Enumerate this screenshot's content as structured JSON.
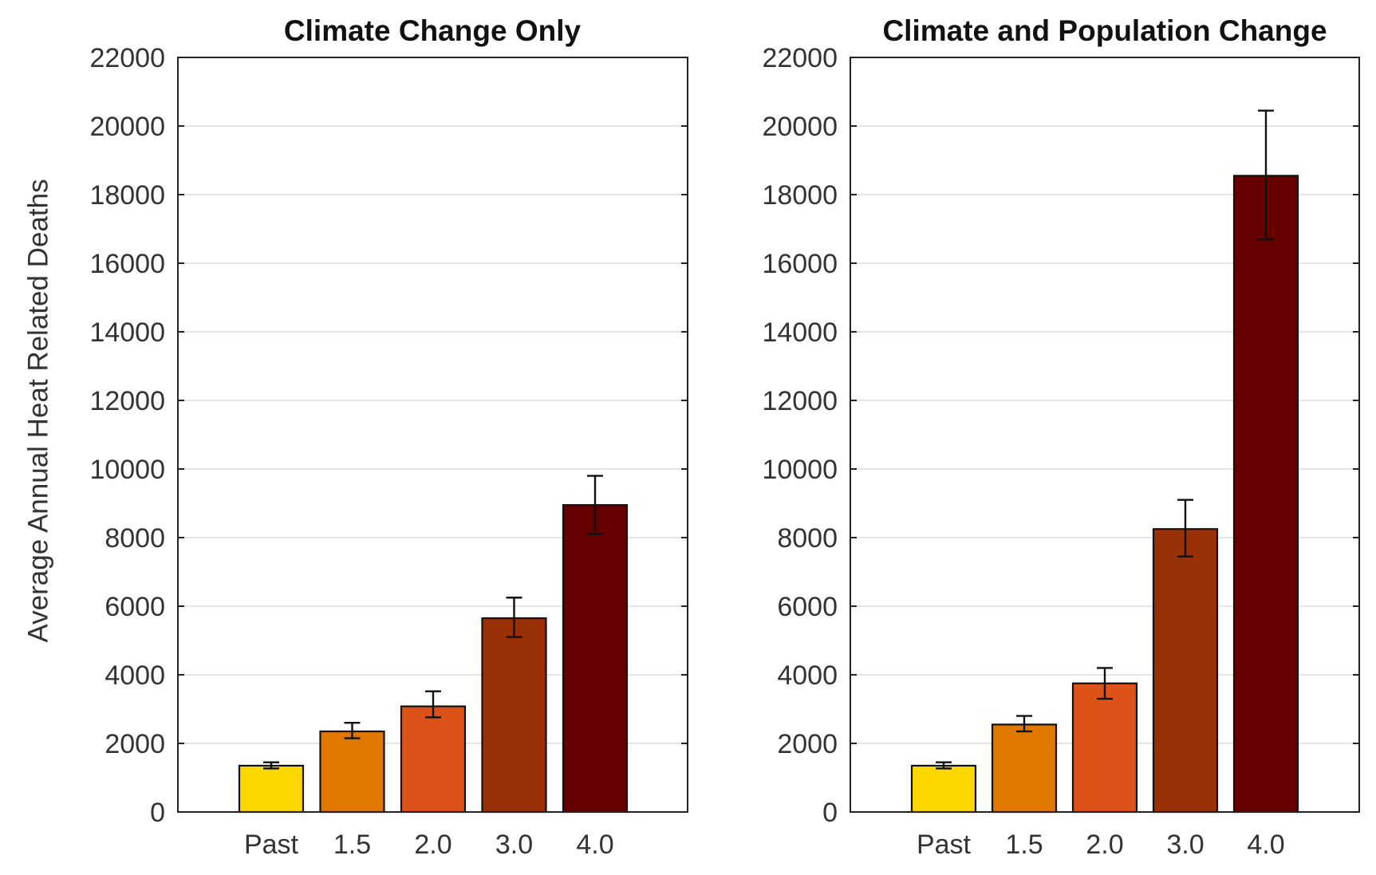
{
  "ylabel": "Average Annual Heat Related Deaths",
  "colors": [
    "#FFD700",
    "#E07800",
    "#DD5218",
    "#9A3006",
    "#660000"
  ],
  "chart_data": [
    {
      "type": "bar",
      "title": "Climate Change Only",
      "categories": [
        "Past",
        "1.5",
        "2.0",
        "3.0",
        "4.0"
      ],
      "values": [
        1350,
        2350,
        3080,
        5650,
        8950
      ],
      "error_low": [
        1270,
        2150,
        2760,
        5100,
        8100
      ],
      "error_high": [
        1450,
        2600,
        3520,
        6250,
        9800
      ],
      "ylim": [
        0,
        22000
      ],
      "yticks": [
        0,
        2000,
        4000,
        6000,
        8000,
        10000,
        12000,
        14000,
        16000,
        18000,
        20000,
        22000
      ],
      "xlabel": "",
      "ylabel": "Average Annual Heat Related Deaths",
      "grid": "horizontal"
    },
    {
      "type": "bar",
      "title": "Climate and Population Change",
      "categories": [
        "Past",
        "1.5",
        "2.0",
        "3.0",
        "4.0"
      ],
      "values": [
        1350,
        2550,
        3750,
        8250,
        18550
      ],
      "error_low": [
        1270,
        2350,
        3300,
        7450,
        16700
      ],
      "error_high": [
        1450,
        2800,
        4200,
        9100,
        20450
      ],
      "ylim": [
        0,
        22000
      ],
      "yticks": [
        0,
        2000,
        4000,
        6000,
        8000,
        10000,
        12000,
        14000,
        16000,
        18000,
        20000,
        22000
      ],
      "xlabel": "",
      "ylabel": "",
      "grid": "horizontal"
    }
  ]
}
